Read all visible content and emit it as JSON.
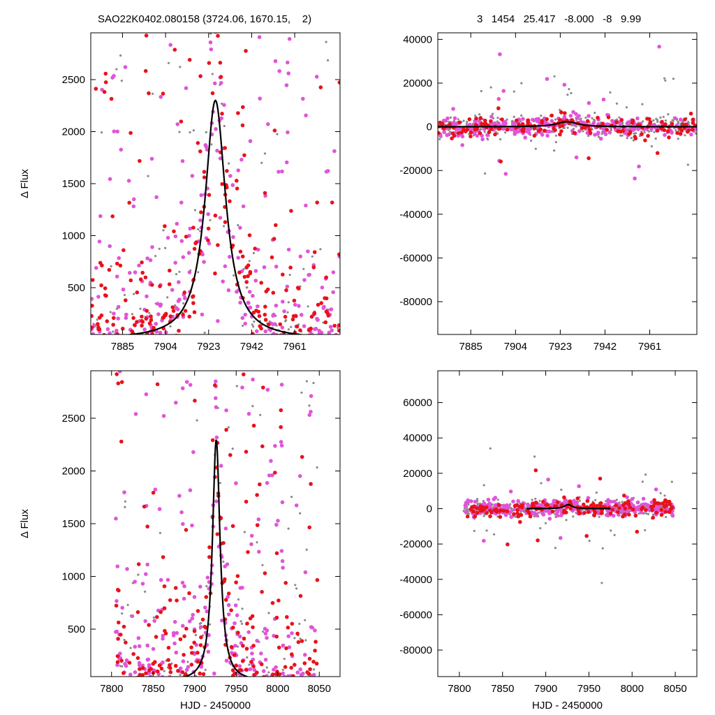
{
  "header": {
    "left_title": "SAO22K0402.080158 (3724.06, 1670.15,    2)",
    "right_title": "3   1454   25.417   -8.000   -8   9.99"
  },
  "colors": {
    "red": "#e8121b",
    "magenta": "#e055d8",
    "gray": "#8a8a8a",
    "model": "#000000"
  },
  "chart_data": [
    {
      "type": "scatter",
      "panel": "top-left",
      "xlabel": "",
      "ylabel": "Δ Flux",
      "xlim": [
        7871,
        7981
      ],
      "ylim": [
        50,
        2950
      ],
      "xticks": [
        7885,
        7904,
        7923,
        7942,
        7961
      ],
      "yticks": [
        500,
        1000,
        1500,
        2000,
        2500
      ],
      "model": {
        "peak_x": 7926,
        "peak_y": 2300,
        "width": 5.5,
        "baseline": 0
      }
    },
    {
      "type": "scatter",
      "panel": "top-right",
      "xlabel": "",
      "ylabel": "",
      "xlim": [
        7871,
        7981
      ],
      "ylim": [
        -95000,
        43000
      ],
      "xticks": [
        7885,
        7904,
        7923,
        7942,
        7961
      ],
      "yticks": [
        40000,
        20000,
        0,
        -20000,
        -40000,
        -60000,
        -80000
      ],
      "model": {
        "peak_x": 7926,
        "peak_y": 2300,
        "width": 5.5,
        "baseline": 0
      }
    },
    {
      "type": "scatter",
      "panel": "bottom-left",
      "xlabel": "HJD - 2450000",
      "ylabel": "Δ Flux",
      "xlim": [
        7775,
        8075
      ],
      "ylim": [
        50,
        2950
      ],
      "xticks": [
        7800,
        7850,
        7900,
        7950,
        8000,
        8050
      ],
      "yticks": [
        500,
        1000,
        1500,
        2000,
        2500
      ],
      "model": {
        "peak_x": 7926,
        "peak_y": 2300,
        "width": 5.5,
        "baseline": 0
      }
    },
    {
      "type": "scatter",
      "panel": "bottom-right",
      "xlabel": "HJD - 2450000",
      "ylabel": "",
      "xlim": [
        7775,
        8075
      ],
      "ylim": [
        -95000,
        78000
      ],
      "xticks": [
        7800,
        7850,
        7900,
        7950,
        8000,
        8050
      ],
      "yticks": [
        60000,
        40000,
        20000,
        0,
        -20000,
        -40000,
        -60000,
        -80000
      ],
      "model": {
        "peak_x": 7926,
        "peak_y": 2300,
        "width": 5.5,
        "baseline": 0,
        "x_from": 7878,
        "x_to": 7975
      }
    }
  ]
}
